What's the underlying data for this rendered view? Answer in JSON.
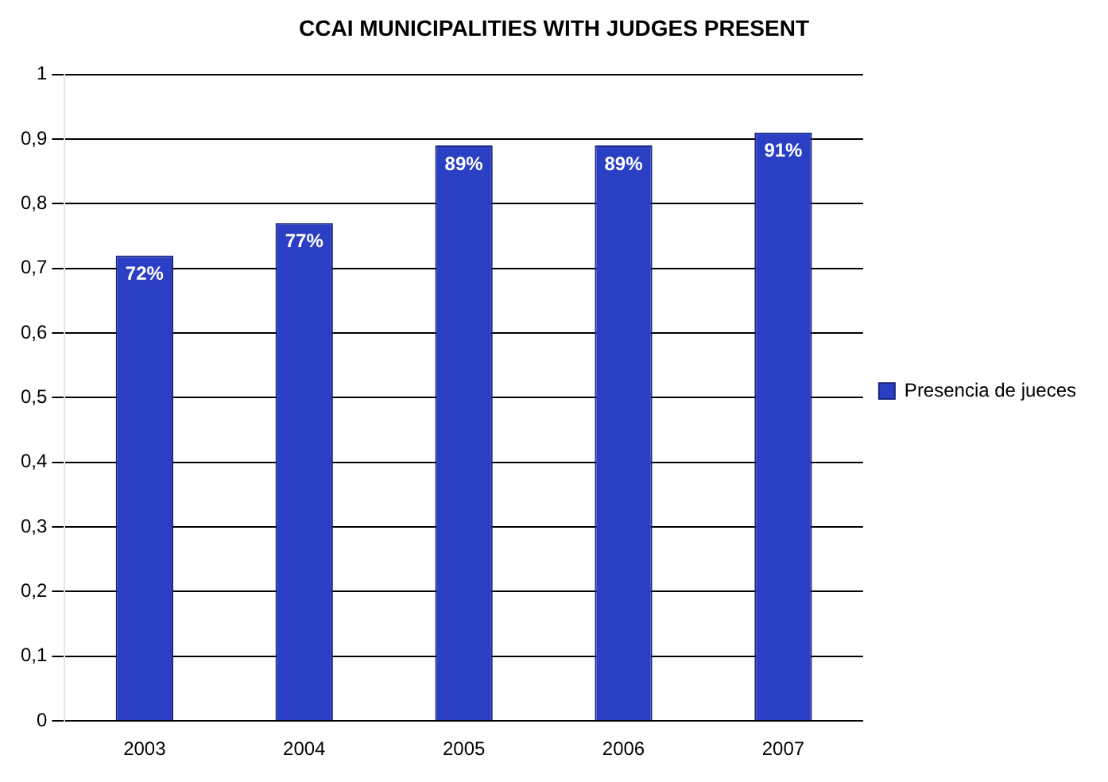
{
  "chart_data": {
    "type": "bar",
    "title": "CCAI MUNICIPALITIES WITH JUDGES PRESENT",
    "categories": [
      "2003",
      "2004",
      "2005",
      "2006",
      "2007"
    ],
    "series": [
      {
        "name": "Presencia de jueces",
        "color": "#2b3fc4",
        "values": [
          0.72,
          0.77,
          0.89,
          0.89,
          0.91
        ],
        "value_labels": [
          "72%",
          "77%",
          "89%",
          "89%",
          "91%"
        ]
      }
    ],
    "ylim": [
      0,
      1
    ],
    "yticks": [
      0,
      {
        "value": 0.1,
        "label": "0,1"
      },
      {
        "value": 0.2,
        "label": "0,2"
      },
      {
        "value": 0.3,
        "label": "0,3"
      },
      {
        "value": 0.4,
        "label": "0,4"
      },
      {
        "value": 0.5,
        "label": "0,5"
      },
      {
        "value": 0.6,
        "label": "0,6"
      },
      {
        "value": 0.7,
        "label": "0,7"
      },
      {
        "value": 0.8,
        "label": "0,8"
      },
      {
        "value": 0.9,
        "label": "0,9"
      },
      1
    ],
    "grid": "y",
    "legend": "right"
  }
}
